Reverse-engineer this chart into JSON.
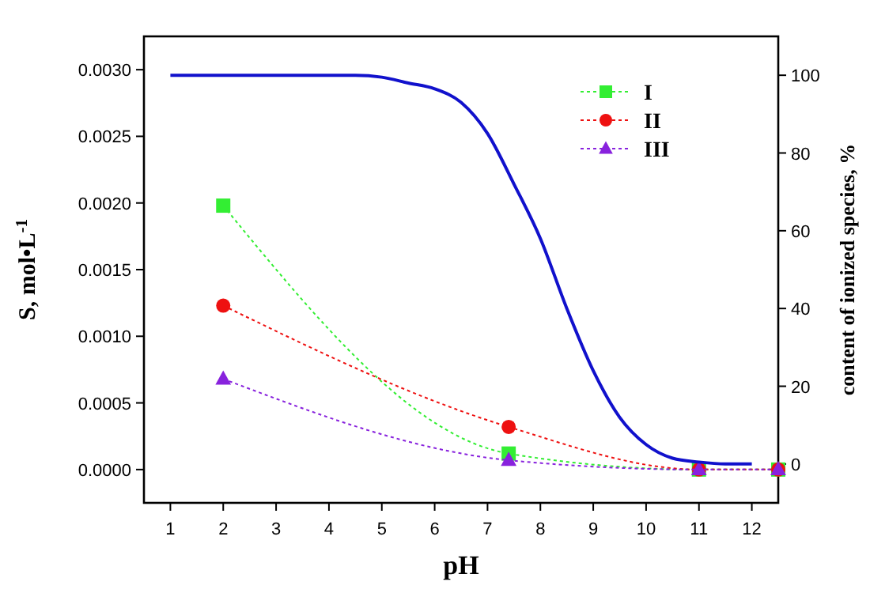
{
  "chart_data": {
    "type": "line",
    "xlabel": "pH",
    "ylabel": "S, mol•L$^{-1}$",
    "y2label": "content of ionized species, %",
    "xlim": [
      0.5,
      12.5
    ],
    "xticks": [
      1,
      2,
      3,
      4,
      5,
      6,
      7,
      8,
      9,
      10,
      11,
      12
    ],
    "ylim": [
      -0.00025,
      0.00325
    ],
    "yticks": [
      {
        "value": 0,
        "label": "0.0000"
      },
      {
        "value": 0.0005,
        "label": "0.0005"
      },
      {
        "value": 0.001,
        "label": "0.0010"
      },
      {
        "value": 0.0015,
        "label": "0.0015"
      },
      {
        "value": 0.002,
        "label": "0.0020"
      },
      {
        "value": 0.0025,
        "label": "0.0025"
      },
      {
        "value": 0.003,
        "label": "0.0030"
      }
    ],
    "y2lim": [
      -10,
      110
    ],
    "y2ticks": [
      0,
      20,
      40,
      60,
      80,
      100
    ],
    "grid": false,
    "legend": "top right",
    "line_style": "dotted",
    "series": [
      {
        "name": "I",
        "color": "#33ee33",
        "marker": "square",
        "x": [
          2,
          7.4,
          11,
          12.5
        ],
        "values": [
          0.00198,
          0.00012,
          0,
          0
        ]
      },
      {
        "name": "II",
        "color": "#ee1111",
        "marker": "circle",
        "x": [
          2,
          7.4,
          11,
          12.5
        ],
        "values": [
          0.00123,
          0.00032,
          0,
          0
        ]
      },
      {
        "name": "III",
        "color": "#8822dd",
        "marker": "triangle",
        "x": [
          2,
          7.4,
          11,
          12.5
        ],
        "values": [
          0.00068,
          7e-05,
          0,
          0
        ]
      },
      {
        "color": "#1111cc",
        "axis": "y2",
        "marker": "none",
        "line_style": "solid",
        "x": [
          1,
          2,
          3,
          4,
          4.5,
          5,
          5.5,
          6,
          6.5,
          7,
          7.5,
          8,
          8.5,
          9,
          9.5,
          10,
          10.5,
          11,
          11.5,
          12
        ],
        "values": [
          100,
          100,
          100,
          100,
          100,
          99.5,
          98,
          96.5,
          93,
          85,
          72,
          58,
          40,
          24,
          12,
          5,
          1.5,
          0.5,
          0,
          0
        ]
      }
    ]
  }
}
